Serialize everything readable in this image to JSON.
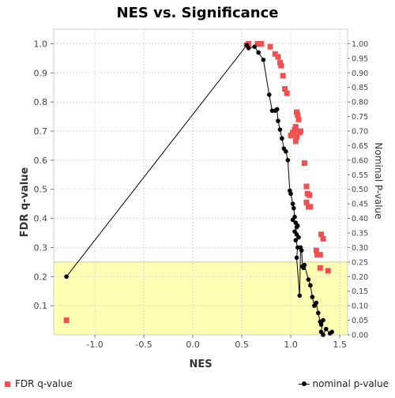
{
  "chart_data": {
    "type": "scatter",
    "title": "NES vs. Significance",
    "xlabel": "NES",
    "ylabel": "FDR q-value",
    "y2label": "Nominal P-value",
    "xlim": [
      -1.42,
      1.58
    ],
    "ylim": [
      0.0,
      1.05
    ],
    "y2lim": [
      0.0,
      1.05
    ],
    "xticks": [
      "-1.0",
      "-0.5",
      "0.0",
      "0.5",
      "1.0",
      "1.5"
    ],
    "yticks": [
      "0.1",
      "0.2",
      "0.3",
      "0.4",
      "0.5",
      "0.6",
      "0.7",
      "0.8",
      "0.9",
      "1.0"
    ],
    "y2ticks": [
      "0.00",
      "0.05",
      "0.10",
      "0.15",
      "0.20",
      "0.25",
      "0.30",
      "0.35",
      "0.40",
      "0.45",
      "0.50",
      "0.55",
      "0.60",
      "0.65",
      "0.70",
      "0.75",
      "0.80",
      "0.85",
      "0.90",
      "0.95",
      "1.00"
    ],
    "grid": true,
    "highlight_band": {
      "y_from": 0.0,
      "y_to": 0.25,
      "color": "#ffffb4"
    },
    "legend_position": "bottom",
    "series": [
      {
        "name": "FDR q-value",
        "axis": "left",
        "marker": "square",
        "color": "#f05050",
        "points": [
          [
            -1.29,
            0.05
          ],
          [
            0.55,
            0.995
          ],
          [
            0.57,
            1.0
          ],
          [
            0.66,
            1.0
          ],
          [
            0.7,
            1.0
          ],
          [
            0.79,
            0.99
          ],
          [
            0.84,
            0.965
          ],
          [
            0.87,
            0.955
          ],
          [
            0.89,
            0.935
          ],
          [
            0.9,
            0.925
          ],
          [
            0.92,
            0.89
          ],
          [
            0.94,
            0.845
          ],
          [
            0.96,
            0.83
          ],
          [
            1.0,
            0.685
          ],
          [
            1.02,
            0.695
          ],
          [
            1.03,
            0.69
          ],
          [
            1.04,
            0.705
          ],
          [
            1.05,
            0.715
          ],
          [
            1.06,
            0.765
          ],
          [
            1.07,
            0.755
          ],
          [
            1.08,
            0.74
          ],
          [
            1.06,
            0.68
          ],
          [
            1.09,
            0.695
          ],
          [
            1.1,
            0.7
          ],
          [
            1.05,
            0.665
          ],
          [
            1.14,
            0.59
          ],
          [
            1.16,
            0.51
          ],
          [
            1.17,
            0.485
          ],
          [
            1.19,
            0.48
          ],
          [
            1.16,
            0.455
          ],
          [
            1.18,
            0.44
          ],
          [
            1.2,
            0.44
          ],
          [
            1.26,
            0.29
          ],
          [
            1.27,
            0.275
          ],
          [
            1.3,
            0.275
          ],
          [
            1.31,
            0.345
          ],
          [
            1.33,
            0.33
          ],
          [
            1.3,
            0.23
          ],
          [
            1.38,
            0.22
          ]
        ]
      },
      {
        "name": "nominal p-value",
        "axis": "right",
        "marker": "circle-line",
        "color": "#000000",
        "points": [
          [
            -1.29,
            0.2
          ],
          [
            0.55,
            0.995
          ],
          [
            0.57,
            0.985
          ],
          [
            0.63,
            0.99
          ],
          [
            0.67,
            0.97
          ],
          [
            0.72,
            0.945
          ],
          [
            0.78,
            0.825
          ],
          [
            0.81,
            0.77
          ],
          [
            0.84,
            0.77
          ],
          [
            0.86,
            0.775
          ],
          [
            0.87,
            0.735
          ],
          [
            0.89,
            0.705
          ],
          [
            0.91,
            0.675
          ],
          [
            0.93,
            0.64
          ],
          [
            0.95,
            0.63
          ],
          [
            0.97,
            0.6
          ],
          [
            0.99,
            0.495
          ],
          [
            1.0,
            0.485
          ],
          [
            1.02,
            0.45
          ],
          [
            1.03,
            0.435
          ],
          [
            1.04,
            0.405
          ],
          [
            1.02,
            0.395
          ],
          [
            1.05,
            0.385
          ],
          [
            1.06,
            0.37
          ],
          [
            1.07,
            0.375
          ],
          [
            1.04,
            0.355
          ],
          [
            1.06,
            0.345
          ],
          [
            1.08,
            0.335
          ],
          [
            1.05,
            0.325
          ],
          [
            1.07,
            0.3
          ],
          [
            1.06,
            0.265
          ],
          [
            1.09,
            0.135
          ],
          [
            1.1,
            0.3
          ],
          [
            1.11,
            0.29
          ],
          [
            1.12,
            0.235
          ],
          [
            1.13,
            0.23
          ],
          [
            1.14,
            0.24
          ],
          [
            1.18,
            0.19
          ],
          [
            1.2,
            0.17
          ],
          [
            1.22,
            0.13
          ],
          [
            1.24,
            0.1
          ],
          [
            1.26,
            0.11
          ],
          [
            1.28,
            0.075
          ],
          [
            1.3,
            0.045
          ],
          [
            1.31,
            0.035
          ],
          [
            1.33,
            0.05
          ],
          [
            1.31,
            0.01
          ],
          [
            1.33,
            0.0
          ],
          [
            1.36,
            0.02
          ],
          [
            1.4,
            0.005
          ],
          [
            1.42,
            0.01
          ]
        ]
      }
    ]
  }
}
